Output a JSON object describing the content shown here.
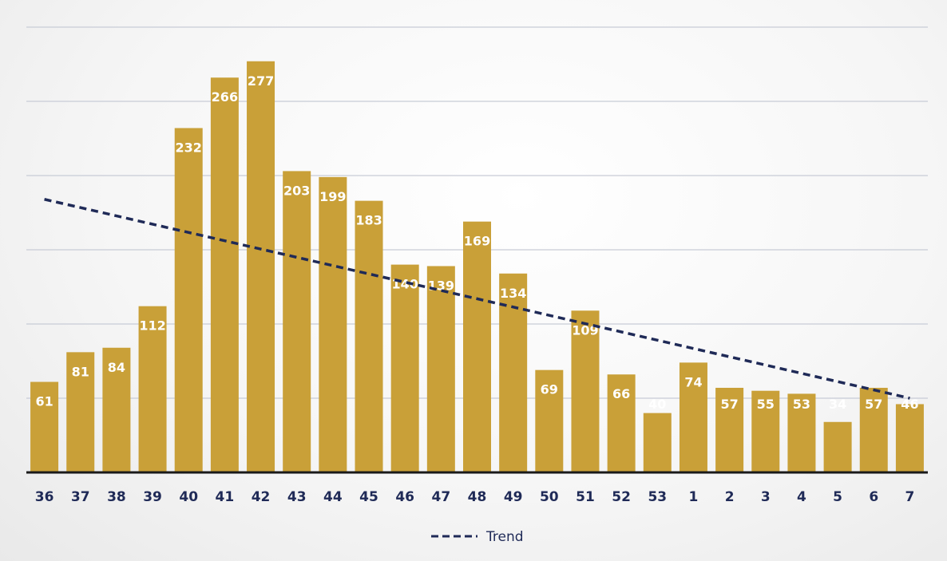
{
  "chart_data": {
    "type": "bar",
    "categories": [
      "36",
      "37",
      "38",
      "39",
      "40",
      "41",
      "42",
      "43",
      "44",
      "45",
      "46",
      "47",
      "48",
      "49",
      "50",
      "51",
      "52",
      "53",
      "1",
      "2",
      "3",
      "4",
      "5",
      "6",
      "7"
    ],
    "values": [
      61,
      81,
      84,
      112,
      232,
      266,
      277,
      203,
      199,
      183,
      140,
      139,
      169,
      134,
      69,
      109,
      66,
      40,
      74,
      57,
      55,
      53,
      34,
      57,
      46
    ],
    "ylim": [
      0,
      300
    ],
    "grid": true,
    "grid_step": 50,
    "trend": {
      "name": "Trend",
      "start": 184,
      "end": 50
    },
    "legend": {
      "position": "bottom-center",
      "entries": [
        "Trend"
      ]
    },
    "colors": {
      "bar": "#c9a038",
      "trend": "#1f2a57",
      "axis": "#1a1a1a",
      "grid": "#c8ccd6"
    }
  }
}
